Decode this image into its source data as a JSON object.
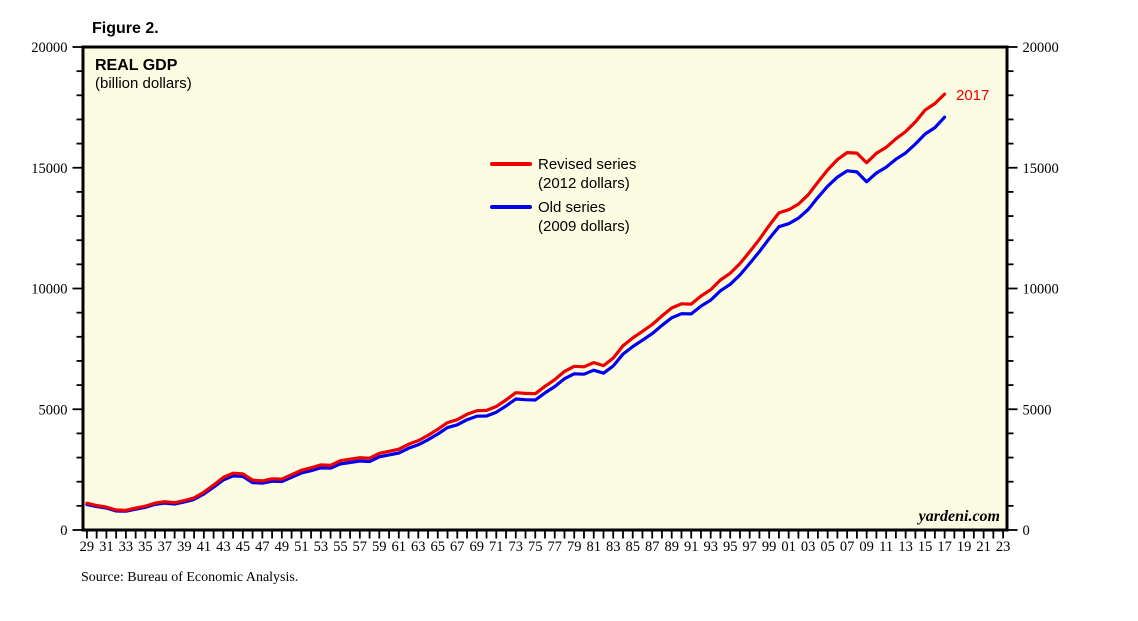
{
  "figure_title": "Figure 2.",
  "header": {
    "title": "REAL GDP",
    "subtitle": "(billion dollars)"
  },
  "legend": {
    "items": [
      {
        "label": "Revised series",
        "sublabel": "(2012 dollars)",
        "color": "#EE0000"
      },
      {
        "label": "Old series",
        "sublabel": "(2009 dollars)",
        "color": "#0000EE"
      }
    ]
  },
  "annotations": {
    "end_year_label": "2017",
    "watermark": "yardeni.com",
    "source": "Source: Bureau of Economic Analysis."
  },
  "colors": {
    "plot_background": "#FCFCE3",
    "axis": "#000000",
    "revised_series": "#EE0000",
    "old_series": "#0000EE"
  },
  "chart_data": {
    "type": "line",
    "title": "REAL GDP",
    "subtitle": "(billion dollars)",
    "grid": false,
    "legend_position": "inside upper-middle-left",
    "xlim": [
      1928.6,
      2023.4
    ],
    "ylim": [
      0,
      20000
    ],
    "y_axis": {
      "minor_step": 1000,
      "major_step": 5000,
      "major_tick_labels": [
        "0",
        "5000",
        "10000",
        "15000",
        "20000"
      ],
      "labels_on_both_sides": true
    },
    "x_axis": {
      "tick_start": 1929,
      "tick_end": 2023,
      "tick_step": 1,
      "label_step": 2,
      "label_style": "last two digits, odd years (29, 31, ... 99, 01, 03, ... 23)"
    },
    "x": [
      1929,
      1930,
      1931,
      1932,
      1933,
      1934,
      1935,
      1936,
      1937,
      1938,
      1939,
      1940,
      1941,
      1942,
      1943,
      1944,
      1945,
      1946,
      1947,
      1948,
      1949,
      1950,
      1951,
      1952,
      1953,
      1954,
      1955,
      1956,
      1957,
      1958,
      1959,
      1960,
      1961,
      1962,
      1963,
      1964,
      1965,
      1966,
      1967,
      1968,
      1969,
      1970,
      1971,
      1972,
      1973,
      1974,
      1975,
      1976,
      1977,
      1978,
      1979,
      1980,
      1981,
      1982,
      1983,
      1984,
      1985,
      1986,
      1987,
      1988,
      1989,
      1990,
      1991,
      1992,
      1993,
      1994,
      1995,
      1996,
      1997,
      1998,
      1999,
      2000,
      2001,
      2002,
      2003,
      2004,
      2005,
      2006,
      2007,
      2008,
      2009,
      2010,
      2011,
      2012,
      2013,
      2014,
      2015,
      2016,
      2017
    ],
    "series": [
      {
        "name": "Revised series (2012 dollars)",
        "color": "#EE0000",
        "values": [
          1109,
          1015,
          950,
          828,
          817,
          906,
          987,
          1113,
          1170,
          1132,
          1222,
          1330,
          1566,
          1862,
          2178,
          2352,
          2329,
          2068,
          2033,
          2119,
          2107,
          2290,
          2474,
          2575,
          2696,
          2680,
          2871,
          2932,
          2994,
          2973,
          3178,
          3260,
          3344,
          3548,
          3703,
          3916,
          4171,
          4446,
          4568,
          4792,
          4942,
          4951,
          5114,
          5383,
          5687,
          5657,
          5645,
          5949,
          6224,
          6569,
          6777,
          6759,
          6931,
          6806,
          7118,
          7633,
          7951,
          8226,
          8511,
          8867,
          9192,
          9366,
          9355,
          9685,
          9952,
          10352,
          10630,
          11031,
          11522,
          12038,
          12610,
          13131,
          13262,
          13493,
          13879,
          14406,
          14913,
          15338,
          15626,
          15605,
          15209,
          15599,
          15841,
          16197,
          16495,
          16900,
          17387,
          17659,
          18051
        ]
      },
      {
        "name": "Old series (2009 dollars)",
        "color": "#0000EE",
        "values": [
          1057,
          967,
          905,
          788,
          778,
          862,
          939,
          1061,
          1115,
          1078,
          1164,
          1266,
          1490,
          1772,
          2074,
          2239,
          2218,
          1961,
          1939,
          2020,
          2009,
          2184,
          2360,
          2456,
          2571,
          2557,
          2739,
          2797,
          2856,
          2835,
          3031,
          3109,
          3188,
          3383,
          3530,
          3734,
          3977,
          4239,
          4355,
          4569,
          4713,
          4722,
          4878,
          5134,
          5424,
          5396,
          5385,
          5675,
          5937,
          6267,
          6466,
          6450,
          6618,
          6491,
          6792,
          7285,
          7594,
          7861,
          8133,
          8475,
          8786,
          8955,
          8948,
          9267,
          9521,
          9905,
          10175,
          10561,
          11035,
          11526,
          12066,
          12560,
          12682,
          12909,
          13271,
          13774,
          14234,
          14614,
          14874,
          14830,
          14419,
          14784,
          15021,
          15355,
          15612,
          15982,
          16397,
          16662,
          17092
        ]
      }
    ]
  }
}
